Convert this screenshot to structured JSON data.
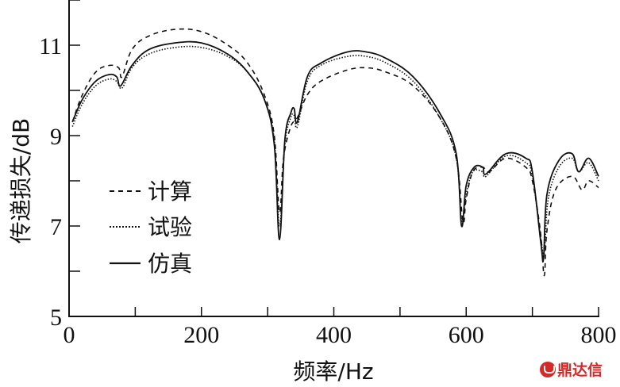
{
  "chart_data": {
    "type": "line",
    "title": "",
    "xlabel": "频率/Hz",
    "ylabel": "传递损失/dB",
    "xlim": [
      0,
      800
    ],
    "ylim": [
      5,
      12
    ],
    "xticks": [
      0,
      200,
      400,
      600,
      800
    ],
    "xticks_minor": [
      100,
      300,
      500,
      700
    ],
    "yticks": [
      5,
      7,
      9,
      11
    ],
    "yticks_minor": [
      6,
      8,
      10,
      12
    ],
    "grid": false,
    "legend_position": "center-left inside",
    "series": [
      {
        "name": "计算",
        "style": "dashed",
        "x": [
          5,
          20,
          40,
          60,
          75,
          80,
          95,
          120,
          160,
          200,
          240,
          270,
          295,
          310,
          318,
          324,
          335,
          345,
          360,
          380,
          420,
          450,
          480,
          520,
          560,
          585,
          595,
          600,
          610,
          625,
          635,
          660,
          690,
          700,
          712,
          718,
          722,
          735,
          760,
          775,
          785,
          800
        ],
        "y": [
          9.3,
          9.9,
          10.4,
          10.55,
          10.5,
          10.3,
          10.9,
          11.2,
          11.35,
          11.3,
          11.0,
          10.6,
          9.9,
          9.0,
          7.3,
          8.5,
          9.2,
          9.4,
          9.9,
          10.2,
          10.45,
          10.5,
          10.4,
          10.1,
          9.4,
          8.5,
          7.1,
          7.6,
          8.2,
          8.3,
          8.2,
          8.5,
          8.3,
          8.0,
          6.9,
          5.9,
          6.9,
          7.8,
          8.1,
          7.8,
          8.0,
          7.85
        ]
      },
      {
        "name": "试验",
        "style": "dotted",
        "x": [
          5,
          20,
          40,
          60,
          72,
          80,
          95,
          120,
          160,
          200,
          240,
          270,
          295,
          310,
          318,
          326,
          335,
          340,
          345,
          360,
          380,
          420,
          450,
          480,
          520,
          560,
          585,
          593,
          600,
          610,
          625,
          630,
          660,
          690,
          700,
          713,
          718,
          724,
          740,
          760,
          770,
          785,
          800
        ],
        "y": [
          9.2,
          9.7,
          10.1,
          10.25,
          10.2,
          10.05,
          10.5,
          10.8,
          10.95,
          10.95,
          10.75,
          10.4,
          9.8,
          8.9,
          7.0,
          8.8,
          9.4,
          9.45,
          9.2,
          10.2,
          10.55,
          10.75,
          10.75,
          10.6,
          10.2,
          9.4,
          8.5,
          7.1,
          7.7,
          8.2,
          8.2,
          8.1,
          8.55,
          8.4,
          8.1,
          6.7,
          6.4,
          7.6,
          8.3,
          8.5,
          8.2,
          8.4,
          8.0
        ]
      },
      {
        "name": "仿真",
        "style": "solid",
        "x": [
          5,
          20,
          40,
          60,
          72,
          78,
          95,
          120,
          160,
          200,
          240,
          270,
          295,
          310,
          318,
          326,
          335,
          340,
          345,
          360,
          380,
          420,
          450,
          480,
          520,
          560,
          585,
          593,
          600,
          612,
          625,
          630,
          660,
          690,
          700,
          713,
          717,
          722,
          740,
          760,
          770,
          785,
          800
        ],
        "y": [
          9.3,
          9.8,
          10.2,
          10.35,
          10.3,
          10.1,
          10.55,
          10.9,
          11.05,
          11.05,
          10.8,
          10.4,
          9.8,
          8.8,
          6.7,
          8.9,
          9.5,
          9.6,
          9.3,
          10.3,
          10.6,
          10.85,
          10.85,
          10.7,
          10.3,
          9.5,
          8.6,
          7.0,
          7.9,
          8.3,
          8.3,
          8.15,
          8.6,
          8.5,
          8.2,
          6.6,
          6.3,
          7.7,
          8.45,
          8.6,
          8.2,
          8.5,
          8.1
        ]
      }
    ]
  },
  "legend": {
    "items": [
      {
        "label": "计算",
        "style": "dashed"
      },
      {
        "label": "试验",
        "style": "dotted"
      },
      {
        "label": "仿真",
        "style": "solid"
      }
    ]
  },
  "watermark": {
    "text": "鼎达信",
    "color": "#d42a27"
  }
}
